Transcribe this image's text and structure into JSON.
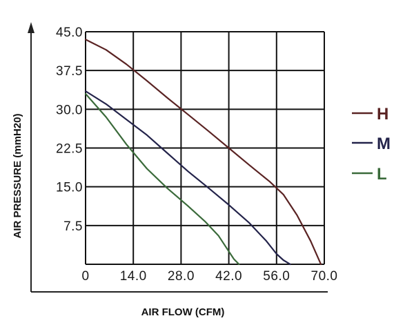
{
  "chart_data": {
    "type": "line",
    "title": "",
    "xlabel": "AIR FLOW (CFM)",
    "ylabel": "AIR PRESSURE (mmH20)",
    "xlim": [
      0,
      70
    ],
    "ylim": [
      0,
      45
    ],
    "x_ticks": [
      0,
      14,
      28,
      42,
      56,
      70
    ],
    "y_ticks": [
      7.5,
      15,
      22.5,
      30,
      37.5,
      45
    ],
    "x_tick_labels": [
      "0",
      "14.0",
      "28.0",
      "42.0",
      "56.0",
      "70.0"
    ],
    "y_tick_labels": [
      "7.5",
      "15.0",
      "22.5",
      "30.0",
      "37.5",
      "45.0"
    ],
    "grid": true,
    "legend_position": "right",
    "series": [
      {
        "name": "H",
        "color": "#5a2323",
        "x": [
          0,
          6,
          12,
          18,
          24,
          30,
          36,
          42,
          48,
          54,
          58,
          62,
          66,
          69
        ],
        "y": [
          43.5,
          41.5,
          38.7,
          35.5,
          32.2,
          29.0,
          25.8,
          22.5,
          19.2,
          16.0,
          13.5,
          9.5,
          4.5,
          0
        ]
      },
      {
        "name": "M",
        "color": "#23234a",
        "x": [
          0,
          6,
          12,
          18,
          24,
          30,
          36,
          42,
          48,
          53,
          56,
          58,
          60
        ],
        "y": [
          33.5,
          31.0,
          28.0,
          25.0,
          21.5,
          18.0,
          14.8,
          11.5,
          8.0,
          4.5,
          2.0,
          0.8,
          0
        ]
      },
      {
        "name": "L",
        "color": "#3a6a3a",
        "x": [
          0,
          6,
          12,
          18,
          24,
          30,
          35,
          39,
          42,
          43.5,
          45
        ],
        "y": [
          33.0,
          28.5,
          23.2,
          18.5,
          14.7,
          11.3,
          8.3,
          5.5,
          2.5,
          1.0,
          0
        ]
      }
    ]
  }
}
